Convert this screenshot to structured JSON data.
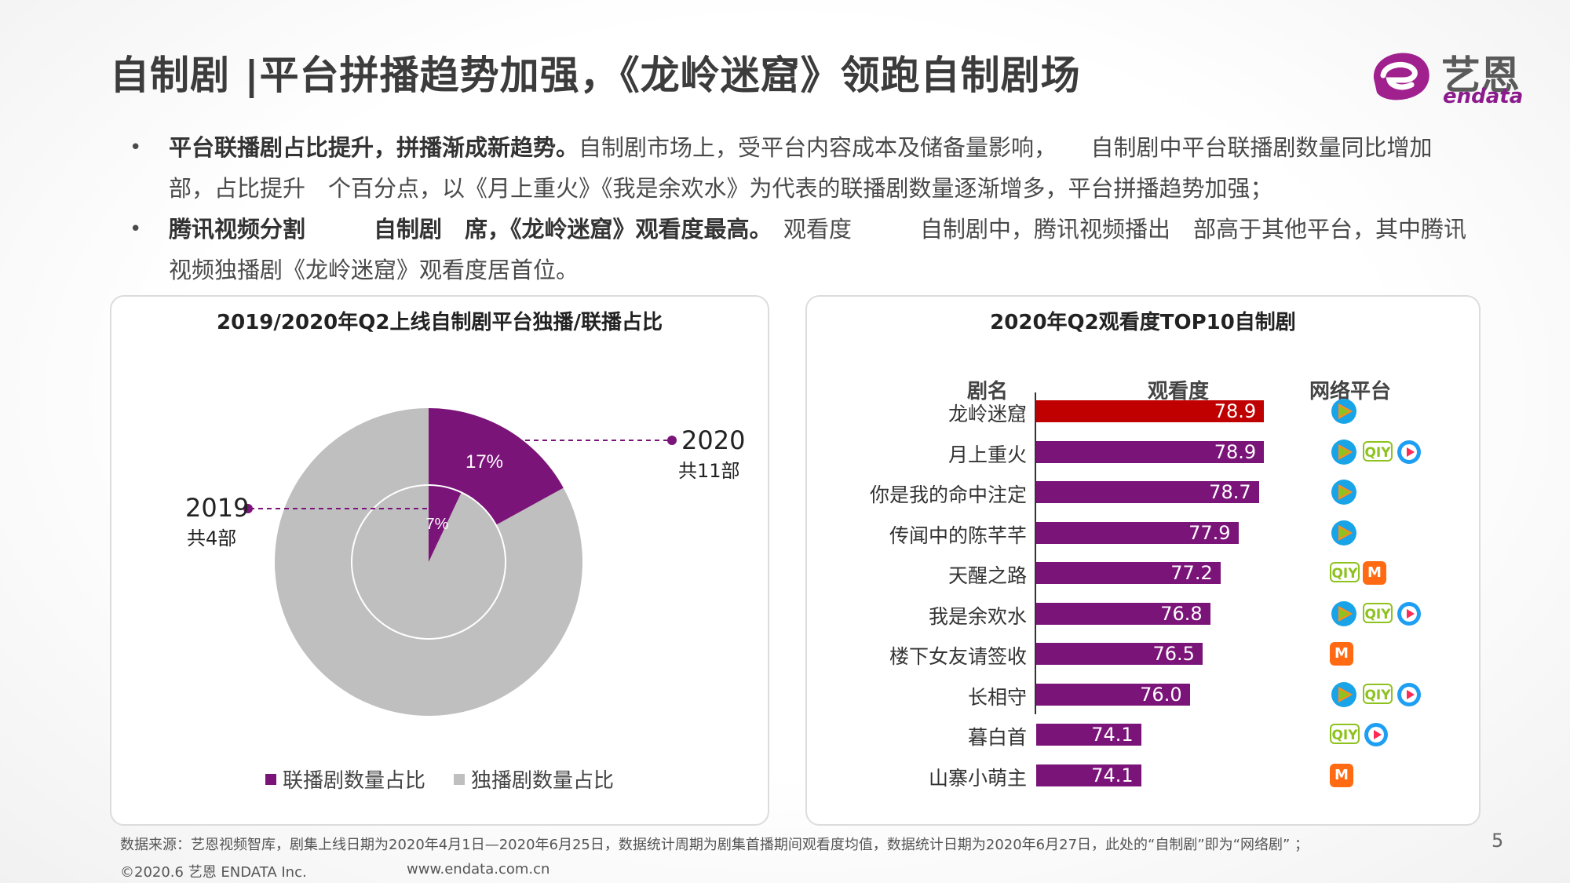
{
  "title": "自制剧 |平台拼播趋势加强，《龙岭迷窟》领跑自制剧场",
  "logo": {
    "cn": "艺恩",
    "en": "endata"
  },
  "bullets": [
    {
      "bold": "平台联播剧占比提升，拼播渐成新趋势。",
      "text": "自制剧市场上，受平台内容成本及储备量影响，　　自制剧中平台联播剧数量同比增加　　部，占比提升　个百分点，以《月上重火》《我是余欢水》为代表的联播剧数量逐渐增多，平台拼播趋势加强；"
    },
    {
      "bold": "腾讯视频分割　　　自制剧　席，《龙岭迷窟》观看度最高。",
      "text": "　观看度　　　自制剧中，腾讯视频播出　部高于其他平台，其中腾讯视频独播剧《龙岭迷窟》观看度居首位。"
    }
  ],
  "left_panel": {
    "title": "2019/2020年Q2上线自制剧平台独播/联播占比",
    "outer_pct": "17%",
    "inner_pct": "7%",
    "label_2020": "2020",
    "label_2020_sub": "共11部",
    "label_2019": "2019",
    "label_2019_sub": "共4部",
    "legend": [
      "联播剧数量占比",
      "独播剧数量占比"
    ]
  },
  "right_panel": {
    "title": "2020年Q2观看度TOP10自制剧",
    "col_name": "剧名",
    "col_value": "观看度",
    "col_platform": "网络平台"
  },
  "colors": {
    "purple": "#7b1479",
    "red": "#c00000",
    "grey": "#bfbfbf",
    "tencent": "#1aa4e8",
    "iqiyi": "#8dc21f",
    "youku": "#1e9ff2",
    "mgtv": "#ff6a13"
  },
  "chart_data": [
    {
      "type": "pie",
      "title": "2019/2020年Q2上线自制剧平台独播/联播占比",
      "series": [
        {
          "name": "2020",
          "values": [
            17,
            83
          ],
          "labels": [
            "联播剧数量占比",
            "独播剧数量占比"
          ]
        },
        {
          "name": "2019",
          "values": [
            7,
            93
          ],
          "labels": [
            "联播剧数量占比",
            "独播剧数量占比"
          ]
        }
      ]
    },
    {
      "type": "bar",
      "title": "2020年Q2观看度TOP10自制剧",
      "categories": [
        "龙岭迷窟",
        "月上重火",
        "你是我的命中注定",
        "传闻中的陈芊芊",
        "天醒之路",
        "我是余欢水",
        "楼下女友请签收",
        "长相守",
        "暮白首",
        "山寨小萌主"
      ],
      "values": [
        78.9,
        78.9,
        78.7,
        77.9,
        77.2,
        76.8,
        76.5,
        76.0,
        74.1,
        74.1
      ],
      "value_labels": [
        "78.9",
        "78.9",
        "78.7",
        "77.9",
        "77.2",
        "76.8",
        "76.5",
        "76.0",
        "74.1",
        "74.1"
      ],
      "platforms": [
        [
          "tencent-icon"
        ],
        [
          "tencent-icon",
          "iqiyi-icon",
          "youku-icon"
        ],
        [
          "tencent-icon"
        ],
        [
          "tencent-icon"
        ],
        [
          "iqiyi-icon",
          "mgtv-icon"
        ],
        [
          "tencent-icon",
          "iqiyi-icon",
          "youku-icon"
        ],
        [
          "mgtv-icon"
        ],
        [
          "tencent-icon",
          "iqiyi-icon",
          "youku-icon"
        ],
        [
          "iqiyi-icon",
          "youku-icon"
        ],
        [
          "mgtv-icon"
        ]
      ],
      "highlight_index": 0
    }
  ],
  "footer": {
    "source": "数据来源：艺恩视频智库，剧集上线日期为2020年4月1日—2020年6月25日，数据统计周期为剧集首播期间观看度均值，数据统计日期为2020年6月27日，此处的“自制剧”即为“网络剧” ；",
    "copyright": "©2020.6 艺恩 ENDATA Inc.",
    "url": "www.endata.com.cn",
    "page": "5"
  }
}
